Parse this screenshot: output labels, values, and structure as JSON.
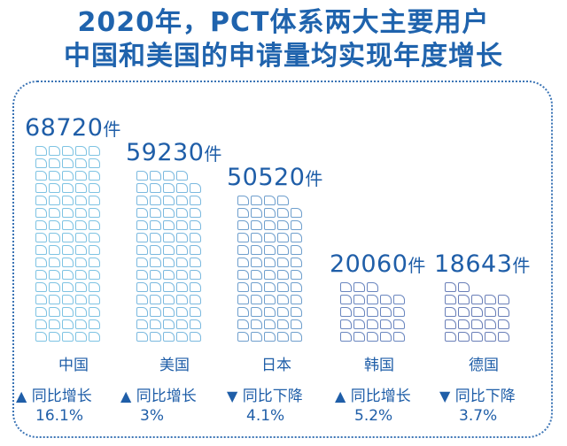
{
  "title": {
    "line1": "2020年，PCT体系两大主要用户",
    "line2": "中国和美国的申请量均实现年度增长"
  },
  "colors": {
    "title": "#1f63ad",
    "value_text": "#1f5ea8",
    "icon_light": "#7ec3e3",
    "icon_mid": "#6f9fcd",
    "icon_dark": "#6a7fb8"
  },
  "unit": "件",
  "countries": [
    {
      "name": "中国",
      "value": "68720",
      "direction": "up",
      "arrow": "▲",
      "change_label": "同比增长",
      "change_pct": "16.1%",
      "icons": 80,
      "icon_color": "#7ec3e3"
    },
    {
      "name": "美国",
      "value": "59230",
      "direction": "up",
      "arrow": "▲",
      "change_label": "同比增长",
      "change_pct": "3%",
      "icons": 69,
      "icon_color": "#7bb9df"
    },
    {
      "name": "日本",
      "value": "50520",
      "direction": "down",
      "arrow": "▼",
      "change_label": "同比下降",
      "change_pct": "4.1%",
      "icons": 59,
      "icon_color": "#6f9fcd"
    },
    {
      "name": "韩国",
      "value": "20060",
      "direction": "up",
      "arrow": "▲",
      "change_label": "同比增长",
      "change_pct": "5.2%",
      "icons": 23,
      "icon_color": "#6a86bf"
    },
    {
      "name": "德国",
      "value": "18643",
      "direction": "down",
      "arrow": "▼",
      "change_label": "同比下降",
      "change_pct": "3.7%",
      "icons": 22,
      "icon_color": "#6a7fb8"
    }
  ],
  "chart_data": {
    "type": "bar",
    "title": "2020年，PCT体系两大主要用户中国和美国的申请量均实现年度增长",
    "categories": [
      "中国",
      "美国",
      "日本",
      "韩国",
      "德国"
    ],
    "values": [
      68720,
      59230,
      50520,
      20060,
      18643
    ],
    "unit": "件",
    "yoy_change": [
      {
        "country": "中国",
        "direction": "增长",
        "pct": 16.1
      },
      {
        "country": "美国",
        "direction": "增长",
        "pct": 3
      },
      {
        "country": "日本",
        "direction": "下降",
        "pct": 4.1
      },
      {
        "country": "韩国",
        "direction": "增长",
        "pct": 5.2
      },
      {
        "country": "德国",
        "direction": "下降",
        "pct": 3.7
      }
    ],
    "xlabel": "",
    "ylabel": "",
    "grid": false,
    "legend": "none",
    "style": "pictogram (document icons)"
  }
}
